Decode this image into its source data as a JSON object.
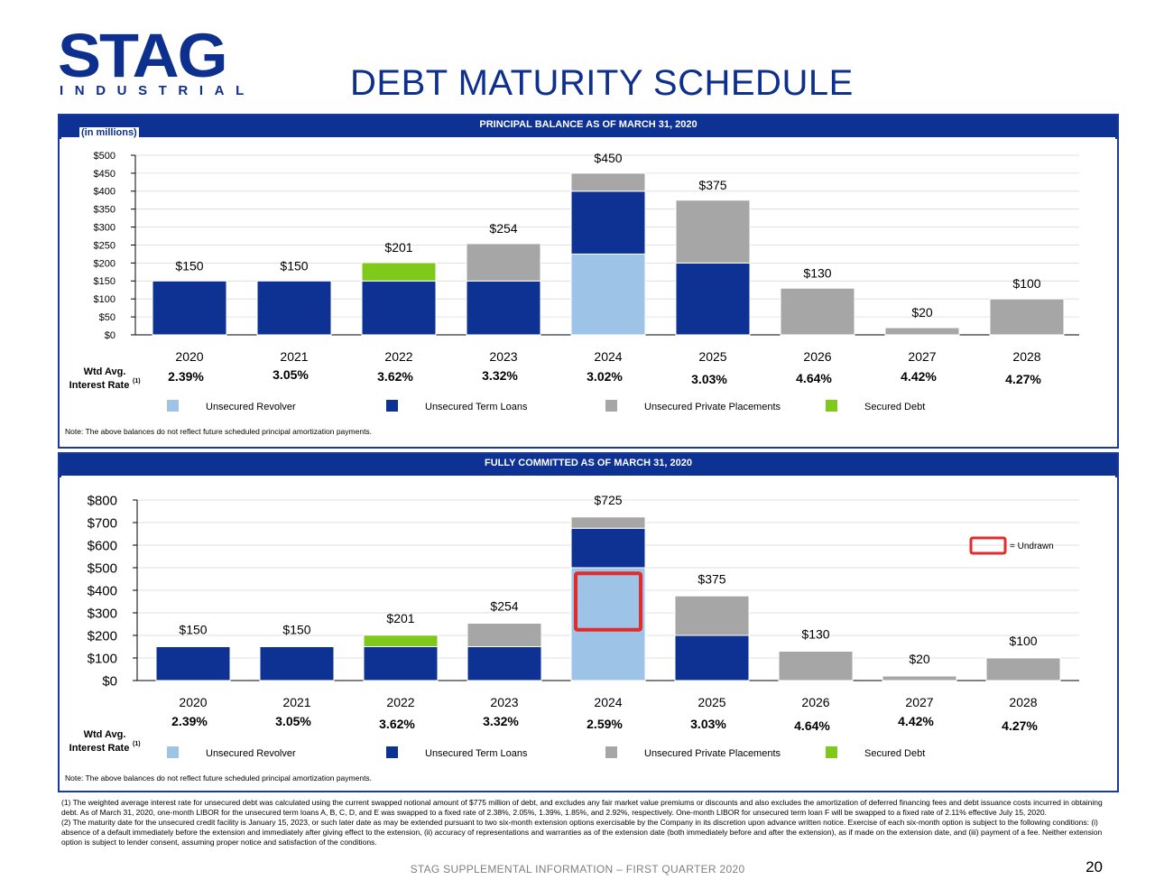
{
  "logo": {
    "word": "STAG",
    "sub": "INDUSTRIAL"
  },
  "title": "DEBT MATURITY SCHEDULE",
  "colors": {
    "unsecured_revolver": "#9dc3e6",
    "unsecured_term_loans": "#0e3294",
    "unsecured_private_placements": "#a6a6a6",
    "secured_debt": "#7ec91a",
    "header_bar": "#0e3294",
    "undrawn_outline": "#e22b2b"
  },
  "legend": {
    "unsecured_revolver": "Unsecured Revolver",
    "unsecured_term_loans": "Unsecured Term Loans",
    "unsecured_private_placements": "Unsecured Private Placements",
    "secured_debt": "Secured Debt",
    "undrawn": "= Undrawn"
  },
  "rate_label": {
    "line1": "Wtd Avg.",
    "line2": "Interest Rate",
    "sup": "(1)"
  },
  "top_panel": {
    "header": "PRINCIPAL BALANCE AS OF MARCH 31, 2020",
    "unit": "(in millions)",
    "note": "Note: The above balances do not reflect future scheduled principal amortization payments."
  },
  "bottom_panel": {
    "header": "FULLY COMMITTED AS OF MARCH 31, 2020",
    "note": "Note: The above balances do not reflect future scheduled principal amortization payments."
  },
  "chart_data": [
    {
      "type": "bar",
      "stacked": true,
      "title": "PRINCIPAL BALANCE AS OF MARCH 31, 2020",
      "ylabel": "(in millions)",
      "ylim": [
        0,
        500
      ],
      "yticks": [
        0,
        50,
        100,
        150,
        200,
        250,
        300,
        350,
        400,
        450,
        500
      ],
      "ytick_labels": [
        "$0",
        "$50",
        "$100",
        "$150",
        "$200",
        "$250",
        "$300",
        "$350",
        "$400",
        "$450",
        "$500"
      ],
      "categories": [
        "2020",
        "2021",
        "2022",
        "2023",
        "2024",
        "2025",
        "2026",
        "2027",
        "2028"
      ],
      "series": [
        {
          "name": "Unsecured Revolver",
          "color": "#9dc3e6",
          "values": [
            0,
            0,
            0,
            0,
            225,
            0,
            0,
            0,
            0
          ]
        },
        {
          "name": "Unsecured Term Loans",
          "color": "#0e3294",
          "values": [
            150,
            150,
            150,
            150,
            175,
            200,
            0,
            0,
            0
          ]
        },
        {
          "name": "Unsecured Private Placements",
          "color": "#a6a6a6",
          "values": [
            0,
            0,
            0,
            104,
            50,
            175,
            130,
            20,
            100
          ]
        },
        {
          "name": "Secured Debt",
          "color": "#7ec91a",
          "values": [
            0,
            0,
            51,
            0,
            0,
            0,
            0,
            0,
            0
          ]
        }
      ],
      "totals": [
        "$150",
        "$150",
        "$201",
        "$254",
        "$450",
        "$375",
        "$130",
        "$20",
        "$100"
      ],
      "rates": [
        "2.39%",
        "3.05%",
        "3.62%",
        "3.32%",
        "3.02%",
        "3.03%",
        "4.64%",
        "4.42%",
        "4.27%"
      ],
      "grid": true,
      "legend_position": "bottom"
    },
    {
      "type": "bar",
      "stacked": true,
      "title": "FULLY COMMITTED AS OF MARCH 31, 2020",
      "ylim": [
        0,
        800
      ],
      "yticks": [
        0,
        100,
        200,
        300,
        400,
        500,
        600,
        700,
        800
      ],
      "ytick_labels": [
        "$0",
        "$100",
        "$200",
        "$300",
        "$400",
        "$500",
        "$600",
        "$700",
        "$800"
      ],
      "categories": [
        "2020",
        "2021",
        "2022",
        "2023",
        "2024",
        "2025",
        "2026",
        "2027",
        "2028"
      ],
      "series": [
        {
          "name": "Unsecured Revolver",
          "color": "#9dc3e6",
          "values": [
            0,
            0,
            0,
            0,
            500,
            0,
            0,
            0,
            0
          ]
        },
        {
          "name": "Unsecured Term Loans",
          "color": "#0e3294",
          "values": [
            150,
            150,
            150,
            150,
            175,
            200,
            0,
            0,
            0
          ]
        },
        {
          "name": "Unsecured Private Placements",
          "color": "#a6a6a6",
          "values": [
            0,
            0,
            0,
            104,
            50,
            175,
            130,
            20,
            100
          ]
        },
        {
          "name": "Secured Debt",
          "color": "#7ec91a",
          "values": [
            0,
            0,
            51,
            0,
            0,
            0,
            0,
            0,
            0
          ]
        }
      ],
      "undrawn": {
        "category": "2024",
        "from": 225,
        "to": 475
      },
      "totals": [
        "$150",
        "$150",
        "$201",
        "$254",
        "$725",
        "$375",
        "$130",
        "$20",
        "$100"
      ],
      "rates": [
        "2.39%",
        "3.05%",
        "3.62%",
        "3.32%",
        "2.59%",
        "3.03%",
        "4.64%",
        "4.42%",
        "4.27%"
      ],
      "grid": true,
      "legend_position": "bottom"
    }
  ],
  "footnotes": {
    "fn1": "(1) The weighted average interest rate for unsecured debt was calculated using the current swapped notional amount of $775 million of debt, and excludes any fair market value premiums or discounts and also excludes the amortization of deferred financing fees and debt issuance costs incurred in obtaining debt. As of March 31, 2020, one-month LIBOR for the unsecured term loans A, B, C, D, and E was swapped to a fixed rate of 2.38%, 2.05%, 1.39%, 1.85%, and 2.92%, respectively. One-month LIBOR for unsecured term loan F will be swapped to a fixed rate of 2.11% effective July 15, 2020.",
    "fn2": "(2) The maturity date for the unsecured credit facility is January 15, 2023, or such later date as may be extended pursuant to two six-month extension options exercisable by the Company in its discretion upon advance written notice. Exercise of each six-month option is subject to the following conditions: (i) absence of a default immediately before the extension and immediately after giving effect to the extension, (ii) accuracy of representations and warranties as of the extension date (both immediately before and after the extension), as if made on the extension date, and (iii) payment of a fee. Neither extension option is subject to lender consent, assuming proper notice and satisfaction of the conditions."
  },
  "footer": "STAG SUPPLEMENTAL INFORMATION – FIRST QUARTER 2020",
  "page_number": "20"
}
